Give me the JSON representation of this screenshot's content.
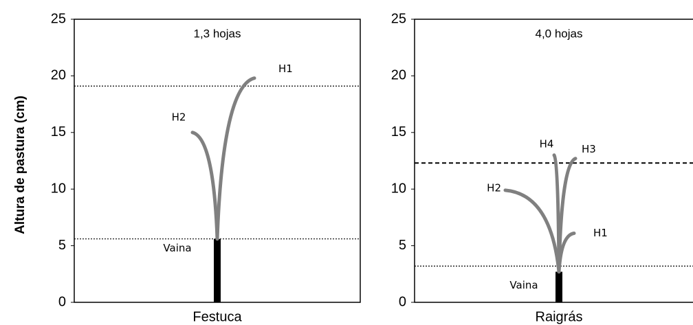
{
  "chart_data": [
    {
      "type": "bar",
      "ylabel": "Altura de pastura (cm)",
      "title": "1,3 hojas",
      "categories": [
        "Festuca"
      ],
      "values": [
        5.6
      ],
      "color": "#000000",
      "ylim": [
        0,
        25
      ],
      "yticks": [
        0,
        5,
        10,
        15,
        20,
        25
      ],
      "sheath_label": "Vaina",
      "leaves": [
        {
          "name": "H1",
          "height": 19.8,
          "color": "#808080"
        },
        {
          "name": "H2",
          "height": 15,
          "color": "#808080"
        }
      ],
      "reference_lines": [
        {
          "value": 19.1,
          "style": "dotted"
        },
        {
          "value": 5.6,
          "style": "dotted"
        }
      ]
    },
    {
      "type": "bar",
      "title": "4,0 hojas",
      "categories": [
        "Raigrás"
      ],
      "values": [
        2.7
      ],
      "color": "#000000",
      "ylim": [
        0,
        25
      ],
      "yticks": [
        0,
        5,
        10,
        15,
        20,
        25
      ],
      "sheath_label": "Vaina",
      "leaves": [
        {
          "name": "H1",
          "height": 6.1,
          "color": "#808080"
        },
        {
          "name": "H2",
          "height": 9.9,
          "color": "#808080"
        },
        {
          "name": "H3",
          "height": 12.7,
          "color": "#808080"
        },
        {
          "name": "H4",
          "height": 13,
          "color": "#808080"
        }
      ],
      "reference_lines": [
        {
          "value": 12.3,
          "style": "dashed"
        },
        {
          "value": 3.2,
          "style": "dotted"
        }
      ]
    }
  ]
}
